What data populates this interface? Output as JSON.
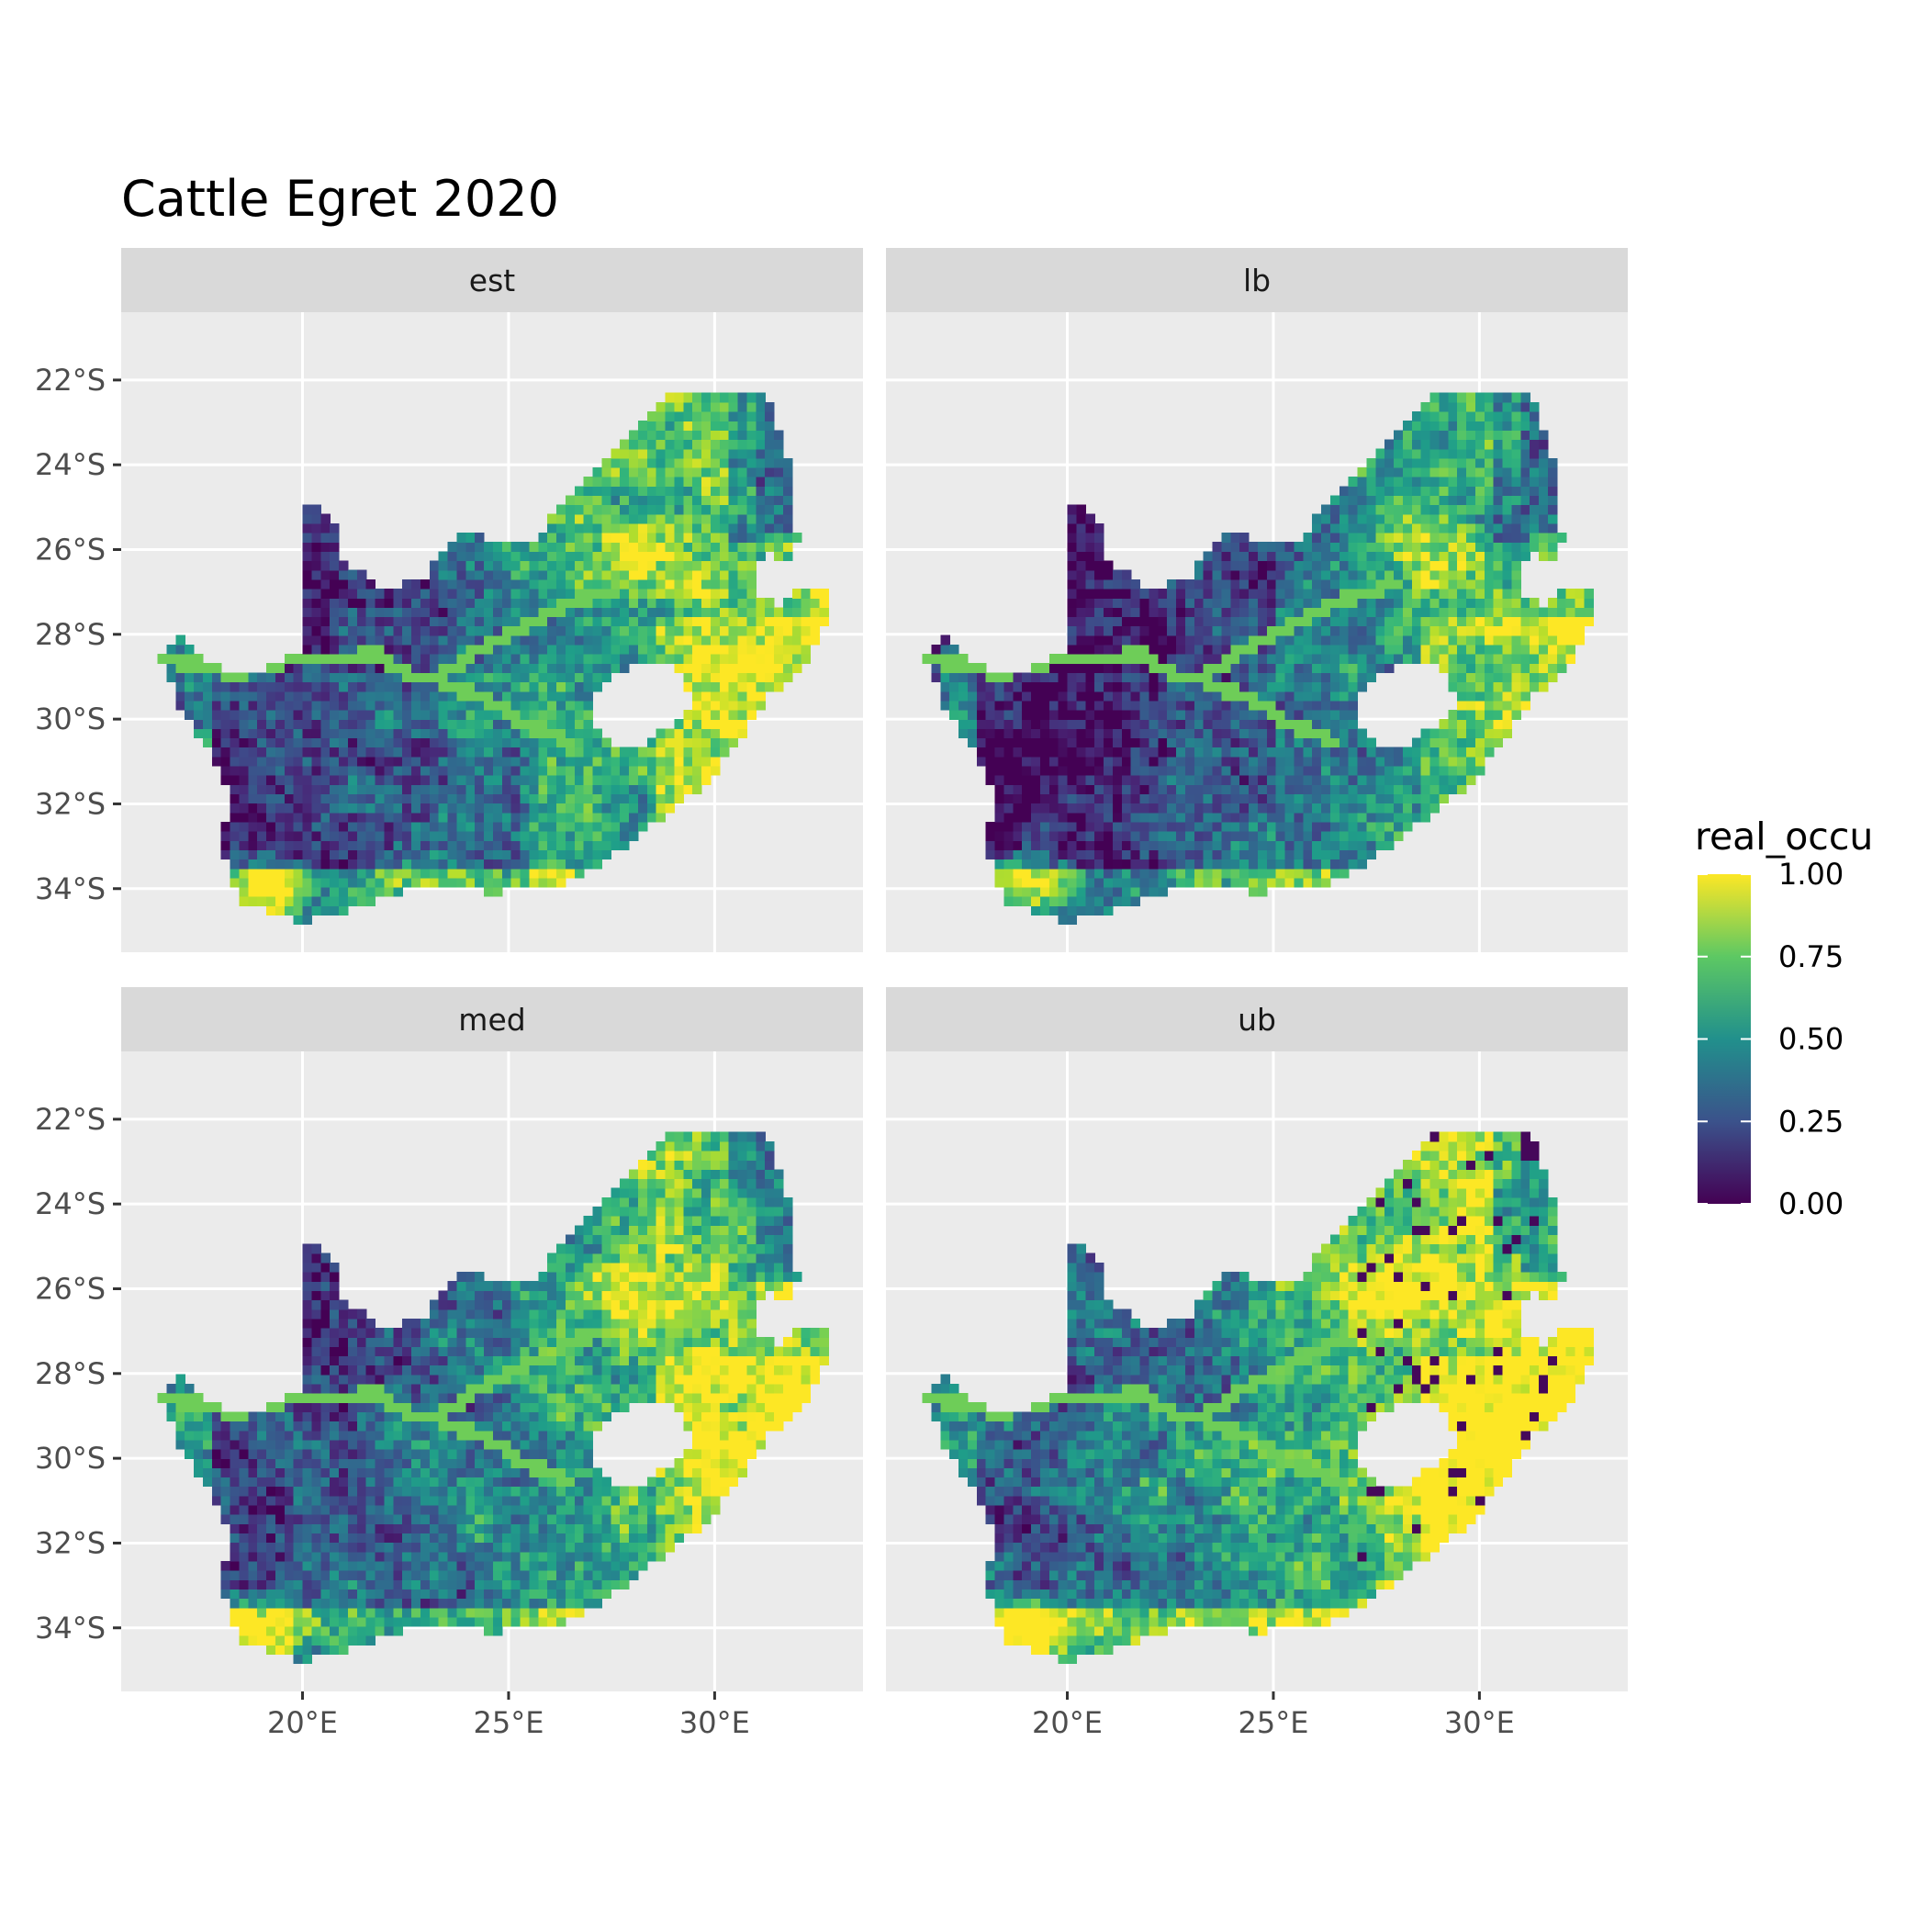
{
  "chart_data": {
    "type": "heatmap",
    "title": "Cattle Egret 2020",
    "facets": [
      {
        "label": "est",
        "profile": "est"
      },
      {
        "label": "lb",
        "profile": "lb"
      },
      {
        "label": "med",
        "profile": "med"
      },
      {
        "label": "ub",
        "profile": "ub"
      }
    ],
    "x_ticks": [
      "20°E",
      "25°E",
      "30°E"
    ],
    "x_tick_values": [
      20,
      25,
      30
    ],
    "y_ticks": [
      "22°S",
      "24°S",
      "26°S",
      "28°S",
      "30°S",
      "32°S",
      "34°S"
    ],
    "y_tick_values": [
      -22,
      -24,
      -26,
      -28,
      -30,
      -32,
      -34
    ],
    "xlim": [
      15.6,
      33.6
    ],
    "ylim": [
      -35.5,
      -20.4
    ],
    "grid": true,
    "legend": {
      "title": "real_occu",
      "placement": "right",
      "breaks": [
        "1.00",
        "0.75",
        "0.50",
        "0.25",
        "0.00"
      ],
      "break_values": [
        1.0,
        0.75,
        0.5,
        0.25,
        0.0
      ],
      "colormap": "viridis",
      "colors": [
        "#440154",
        "#3b528b",
        "#21908c",
        "#5dc863",
        "#fde725"
      ]
    },
    "region": {
      "outline_lonlat": [
        [
          16.5,
          -28.6
        ],
        [
          17.0,
          -28.0
        ],
        [
          17.4,
          -28.5
        ],
        [
          18.2,
          -28.9
        ],
        [
          19.0,
          -28.9
        ],
        [
          19.9,
          -28.4
        ],
        [
          20.0,
          -24.8
        ],
        [
          20.8,
          -25.3
        ],
        [
          20.8,
          -26.2
        ],
        [
          22.0,
          -26.9
        ],
        [
          23.0,
          -26.7
        ],
        [
          23.4,
          -26.0
        ],
        [
          23.9,
          -25.6
        ],
        [
          24.9,
          -25.8
        ],
        [
          25.6,
          -25.8
        ],
        [
          26.4,
          -24.8
        ],
        [
          27.0,
          -24.2
        ],
        [
          27.4,
          -23.9
        ],
        [
          27.9,
          -23.3
        ],
        [
          28.7,
          -22.5
        ],
        [
          29.3,
          -22.2
        ],
        [
          30.3,
          -22.3
        ],
        [
          31.3,
          -22.4
        ],
        [
          31.6,
          -23.3
        ],
        [
          31.9,
          -24.4
        ],
        [
          32.0,
          -25.8
        ],
        [
          31.7,
          -26.3
        ],
        [
          31.3,
          -26.0
        ],
        [
          30.9,
          -26.4
        ],
        [
          31.0,
          -27.0
        ],
        [
          31.5,
          -27.3
        ],
        [
          31.9,
          -26.9
        ],
        [
          32.9,
          -26.9
        ],
        [
          32.6,
          -28.0
        ],
        [
          32.2,
          -28.8
        ],
        [
          31.3,
          -29.4
        ],
        [
          30.6,
          -30.5
        ],
        [
          29.8,
          -31.5
        ],
        [
          28.5,
          -32.5
        ],
        [
          27.4,
          -33.3
        ],
        [
          26.5,
          -33.8
        ],
        [
          25.6,
          -34.0
        ],
        [
          24.5,
          -34.1
        ],
        [
          23.5,
          -33.9
        ],
        [
          22.5,
          -34.0
        ],
        [
          21.5,
          -34.4
        ],
        [
          20.0,
          -34.8
        ],
        [
          19.4,
          -34.6
        ],
        [
          18.8,
          -34.4
        ],
        [
          18.4,
          -34.3
        ],
        [
          18.3,
          -33.8
        ],
        [
          18.0,
          -33.0
        ],
        [
          17.9,
          -32.7
        ],
        [
          18.3,
          -32.3
        ],
        [
          18.2,
          -31.6
        ],
        [
          17.6,
          -30.6
        ],
        [
          17.1,
          -29.9
        ],
        [
          16.8,
          -29.2
        ]
      ],
      "lesotho_outline_lonlat": [
        [
          27.0,
          -29.6
        ],
        [
          27.5,
          -29.0
        ],
        [
          28.1,
          -28.6
        ],
        [
          28.7,
          -28.6
        ],
        [
          29.3,
          -29.0
        ],
        [
          29.4,
          -29.6
        ],
        [
          29.1,
          -30.1
        ],
        [
          28.6,
          -30.2
        ],
        [
          28.2,
          -30.6
        ],
        [
          27.6,
          -30.6
        ],
        [
          27.1,
          -30.1
        ]
      ],
      "orange_river_lonlat": [
        [
          16.6,
          -28.6
        ],
        [
          17.4,
          -28.7
        ],
        [
          18.2,
          -28.9
        ],
        [
          19.0,
          -28.8
        ],
        [
          19.6,
          -28.6
        ],
        [
          20.2,
          -28.5
        ],
        [
          20.8,
          -28.6
        ],
        [
          21.3,
          -28.5
        ],
        [
          21.9,
          -28.5
        ],
        [
          22.5,
          -28.9
        ],
        [
          23.4,
          -29.1
        ],
        [
          24.1,
          -29.4
        ],
        [
          24.8,
          -29.7
        ],
        [
          25.4,
          -30.1
        ],
        [
          26.4,
          -30.5
        ]
      ],
      "vaal_river_lonlat": [
        [
          23.3,
          -29.0
        ],
        [
          24.2,
          -28.4
        ],
        [
          25.0,
          -28.0
        ],
        [
          25.8,
          -27.6
        ],
        [
          26.6,
          -27.2
        ],
        [
          27.3,
          -27.0
        ],
        [
          28.1,
          -26.8
        ]
      ]
    }
  }
}
